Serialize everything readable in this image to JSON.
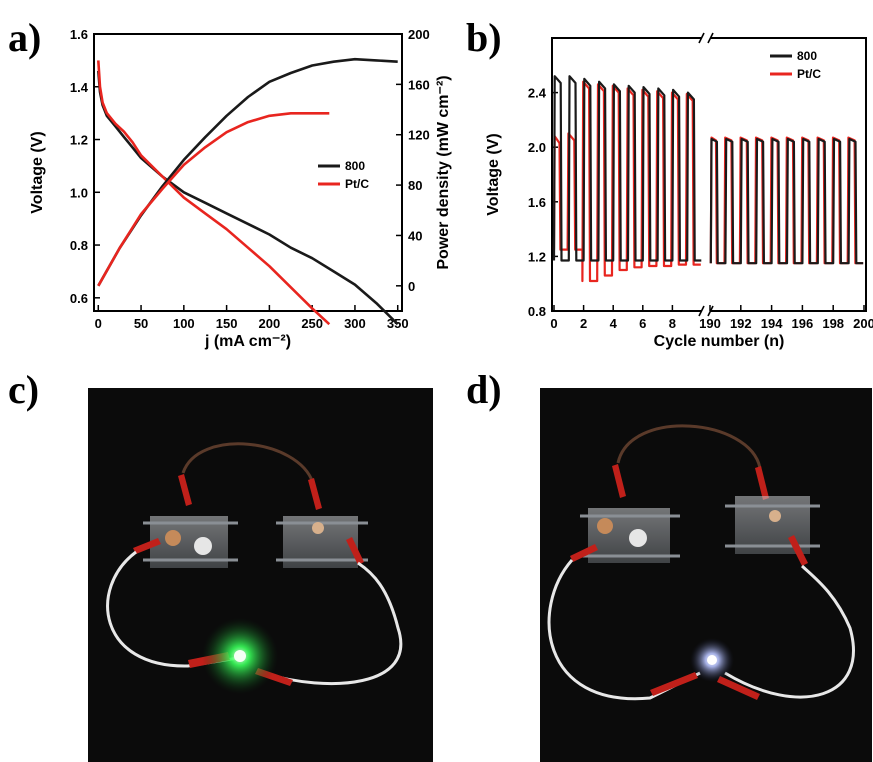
{
  "panels": {
    "a": "a)",
    "b": "b)",
    "c": "c)",
    "d": "d)"
  },
  "colors": {
    "series_800": "#1a1a1a",
    "series_ptc": "#e8251f",
    "photo_background": "#0b0b0b",
    "led_c": "#39ff5a",
    "led_d": "#b8c4ff"
  },
  "chart_data": [
    {
      "id": "a",
      "type": "line",
      "xlabel": "j (mA cm⁻²)",
      "ylabel": "Voltage (V)",
      "ylabel_right": "Power density (mW cm⁻²)",
      "xlim": [
        -5,
        355
      ],
      "ylim": [
        0.55,
        1.6
      ],
      "ylim_right": [
        -20,
        200
      ],
      "x_ticks": [
        0,
        50,
        100,
        150,
        200,
        250,
        300,
        350
      ],
      "y_ticks": [
        0.6,
        0.8,
        1.0,
        1.2,
        1.4,
        1.6
      ],
      "y_ticks_right": [
        0,
        40,
        80,
        120,
        160,
        200
      ],
      "x_tick_labels": [
        "0",
        "50",
        "100",
        "150",
        "200",
        "250",
        "300",
        "350"
      ],
      "y_tick_labels": [
        "0.6",
        "0.8",
        "1.0",
        "1.2",
        "1.4",
        "1.6"
      ],
      "y_tick_labels_right": [
        "0",
        "40",
        "80",
        "120",
        "160",
        "200"
      ],
      "legend": {
        "placement": "center-right",
        "entries": [
          "800",
          "Pt/C"
        ]
      },
      "series": [
        {
          "name": "800",
          "kind": "voltage",
          "axis": "left",
          "x": [
            0,
            2,
            5,
            10,
            20,
            30,
            40,
            50,
            75,
            100,
            125,
            150,
            175,
            200,
            225,
            250,
            275,
            300,
            325,
            350
          ],
          "y": [
            1.46,
            1.38,
            1.33,
            1.29,
            1.25,
            1.21,
            1.17,
            1.13,
            1.06,
            1.0,
            0.96,
            0.92,
            0.88,
            0.84,
            0.79,
            0.75,
            0.7,
            0.65,
            0.58,
            0.5
          ]
        },
        {
          "name": "Pt/C",
          "kind": "voltage",
          "axis": "left",
          "x": [
            0,
            2,
            5,
            10,
            20,
            30,
            40,
            50,
            75,
            100,
            125,
            150,
            175,
            200,
            225,
            250,
            270
          ],
          "y": [
            1.5,
            1.4,
            1.34,
            1.3,
            1.26,
            1.23,
            1.19,
            1.14,
            1.06,
            0.98,
            0.92,
            0.86,
            0.79,
            0.72,
            0.64,
            0.56,
            0.5
          ]
        },
        {
          "name": "800",
          "kind": "power",
          "axis": "right",
          "x": [
            0,
            25,
            50,
            75,
            100,
            125,
            150,
            175,
            200,
            225,
            250,
            275,
            300,
            325,
            350
          ],
          "y": [
            0,
            30,
            56,
            79,
            100,
            118,
            135,
            150,
            162,
            169,
            175,
            178,
            180,
            179,
            178
          ]
        },
        {
          "name": "Pt/C",
          "kind": "power",
          "axis": "right",
          "x": [
            0,
            25,
            50,
            75,
            100,
            125,
            150,
            175,
            200,
            225,
            250,
            270
          ],
          "y": [
            0,
            30,
            57,
            77,
            96,
            110,
            122,
            130,
            135,
            137,
            137,
            137
          ]
        }
      ]
    },
    {
      "id": "b",
      "type": "line",
      "xlabel": "Cycle number (n)",
      "ylabel": "Voltage (V)",
      "axis_break": true,
      "segments": [
        {
          "xlim": [
            0,
            10
          ]
        },
        {
          "xlim": [
            190,
            200
          ]
        }
      ],
      "ylim": [
        0.8,
        2.8
      ],
      "y_ticks": [
        0.8,
        1.2,
        1.6,
        2.0,
        2.4
      ],
      "y_tick_labels": [
        "0.8",
        "1.2",
        "1.6",
        "2.0",
        "2.4"
      ],
      "x_ticks": [
        0,
        2,
        4,
        6,
        8,
        190,
        192,
        194,
        196,
        198,
        200
      ],
      "x_tick_labels": [
        "0",
        "2",
        "4",
        "6",
        "8",
        "190",
        "192",
        "194",
        "196",
        "198",
        "200"
      ],
      "legend": {
        "placement": "top-right",
        "entries": [
          "800",
          "Pt/C"
        ]
      },
      "series": [
        {
          "name": "800",
          "charge_voltage": [
            2.52,
            2.52,
            2.5,
            2.48,
            2.46,
            2.45,
            2.44,
            2.43,
            2.42,
            2.4
          ],
          "discharge_voltage": 1.17,
          "late_charge_voltage": 2.06,
          "late_discharge_voltage": 1.15
        },
        {
          "name": "Pt/C",
          "charge_voltage": [
            2.08,
            2.1,
            2.48,
            2.46,
            2.45,
            2.43,
            2.42,
            2.41,
            2.4,
            2.39
          ],
          "discharge_voltage": [
            1.25,
            1.25,
            1.02,
            1.06,
            1.1,
            1.12,
            1.13,
            1.13,
            1.14,
            1.14
          ],
          "late_charge_voltage": 2.07,
          "late_discharge_voltage": 1.15
        }
      ]
    }
  ]
}
